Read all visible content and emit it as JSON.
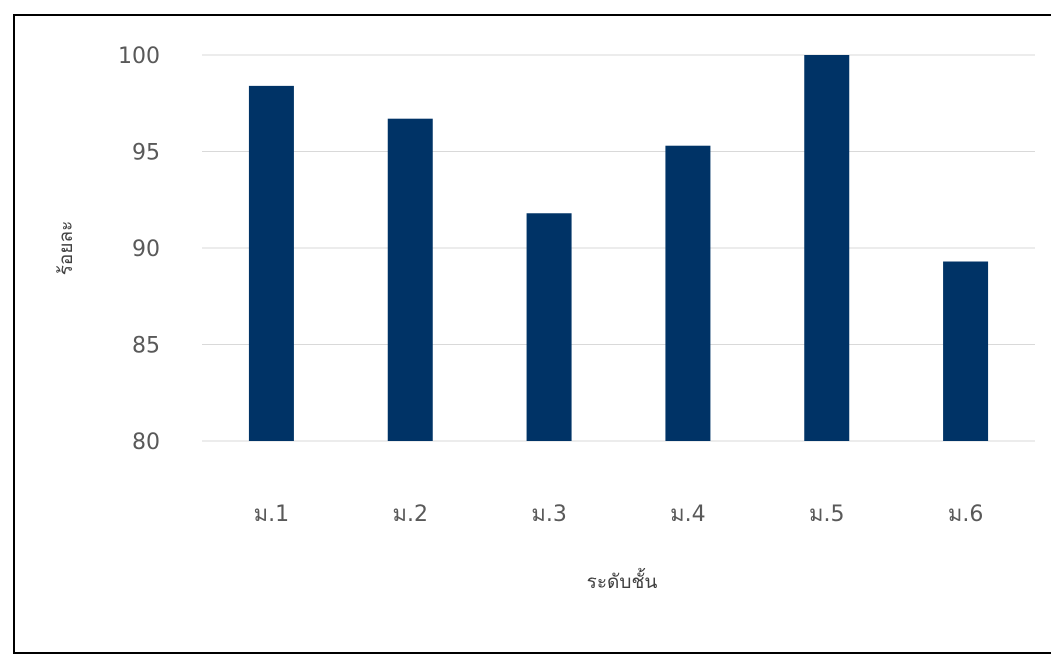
{
  "chart_data": {
    "type": "bar",
    "categories": [
      "ม.1",
      "ม.2",
      "ม.3",
      "ม.4",
      "ม.5",
      "ม.6"
    ],
    "values": [
      98.4,
      96.7,
      91.8,
      95.3,
      100,
      89.3
    ],
    "xlabel": "ระดับชั้น",
    "ylabel": "ร้อยละ",
    "ylim": [
      80,
      100
    ],
    "yticks": [
      "80",
      "85",
      "90",
      "95",
      "100"
    ],
    "grid": true,
    "legend": "none",
    "bar_color": "#003366",
    "grid_color": "#d9d9d9"
  }
}
